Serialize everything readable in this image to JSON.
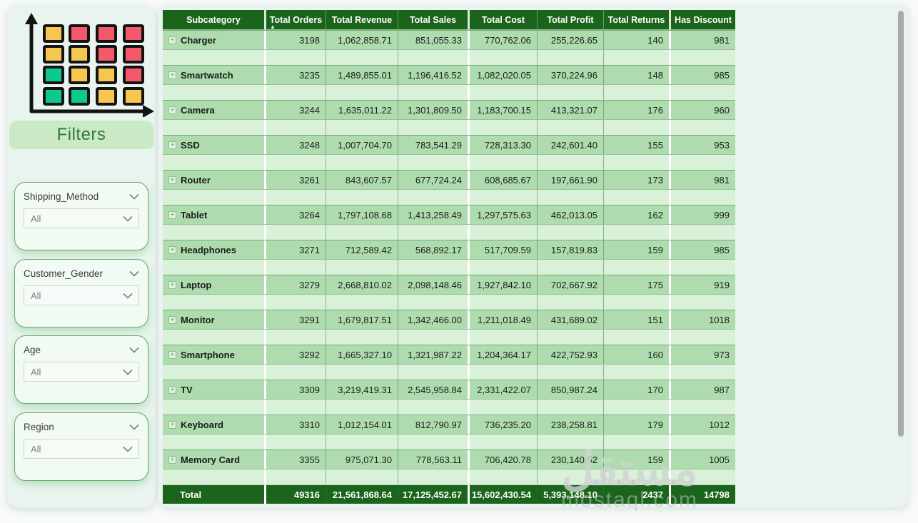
{
  "sidebar": {
    "filters_title": "Filters",
    "filters": [
      {
        "label": "Shipping_Method",
        "value": "All"
      },
      {
        "label": "Customer_Gender",
        "value": "All"
      },
      {
        "label": "Age",
        "value": "All"
      },
      {
        "label": "Region",
        "value": "All"
      }
    ]
  },
  "logo": {
    "grid": [
      [
        "yellow",
        "red",
        "red",
        "red"
      ],
      [
        "yellow",
        "yellow",
        "red",
        "red"
      ],
      [
        "green",
        "yellow",
        "yellow",
        "red"
      ],
      [
        "green",
        "green",
        "yellow",
        "yellow"
      ]
    ],
    "palette": {
      "yellow": "#f7c64f",
      "red": "#f4596b",
      "green": "#0dc98f"
    }
  },
  "table": {
    "columns": [
      "Subcategory",
      "Total Orders",
      "Total Revenue",
      "Total Sales",
      "Total Cost",
      "Total Profit",
      "Total Returns",
      "Has Discount"
    ],
    "sorted_column_index": 1,
    "sort_indicator": "▲",
    "expand_icon": "+",
    "rows": [
      [
        "Charger",
        "3198",
        "1,062,858.71",
        "851,055.33",
        "770,762.06",
        "255,226.65",
        "140",
        "981"
      ],
      [
        "Smartwatch",
        "3235",
        "1,489,855.01",
        "1,196,416.52",
        "1,082,020.05",
        "370,224.96",
        "148",
        "985"
      ],
      [
        "Camera",
        "3244",
        "1,635,011.22",
        "1,301,809.50",
        "1,183,700.15",
        "413,321.07",
        "176",
        "960"
      ],
      [
        "SSD",
        "3248",
        "1,007,704.70",
        "783,541.29",
        "728,313.30",
        "242,601.40",
        "155",
        "953"
      ],
      [
        "Router",
        "3261",
        "843,607.57",
        "677,724.24",
        "608,685.67",
        "197,661.90",
        "173",
        "981"
      ],
      [
        "Tablet",
        "3264",
        "1,797,108.68",
        "1,413,258.49",
        "1,297,575.63",
        "462,013.05",
        "162",
        "999"
      ],
      [
        "Headphones",
        "3271",
        "712,589.42",
        "568,892.17",
        "517,709.59",
        "157,819.83",
        "159",
        "985"
      ],
      [
        "Laptop",
        "3279",
        "2,668,810.02",
        "2,098,148.46",
        "1,927,842.10",
        "702,667.92",
        "175",
        "919"
      ],
      [
        "Monitor",
        "3291",
        "1,679,817.51",
        "1,342,466.00",
        "1,211,018.49",
        "431,689.02",
        "151",
        "1018"
      ],
      [
        "Smartphone",
        "3292",
        "1,665,327.10",
        "1,321,987.22",
        "1,204,364.17",
        "422,752.93",
        "160",
        "973"
      ],
      [
        "TV",
        "3309",
        "3,219,419.31",
        "2,545,958.84",
        "2,331,422.07",
        "850,987.24",
        "170",
        "987"
      ],
      [
        "Keyboard",
        "3310",
        "1,012,154.01",
        "812,790.97",
        "736,235.20",
        "238,258.81",
        "179",
        "1012"
      ],
      [
        "Memory Card",
        "3355",
        "975,071.30",
        "778,563.11",
        "706,420.78",
        "230,140.52",
        "159",
        "1005"
      ]
    ],
    "total_row": [
      "Total",
      "49316",
      "21,561,868.64",
      "17,125,452.67",
      "15,602,430.54",
      "5,393,148.10",
      "2437",
      "14798"
    ]
  },
  "watermark": {
    "arabic": "مستقل",
    "latin": "mostaql.com"
  },
  "colors": {
    "header_green": "#1a651b",
    "category_row": "#aedcae",
    "blank_row": "#d9f1d9",
    "card_mint": "#e9f4f0",
    "filters_banner": "#c9eac5",
    "filters_title_text": "#2f7a33",
    "scrollbar": "#a9aba9"
  }
}
